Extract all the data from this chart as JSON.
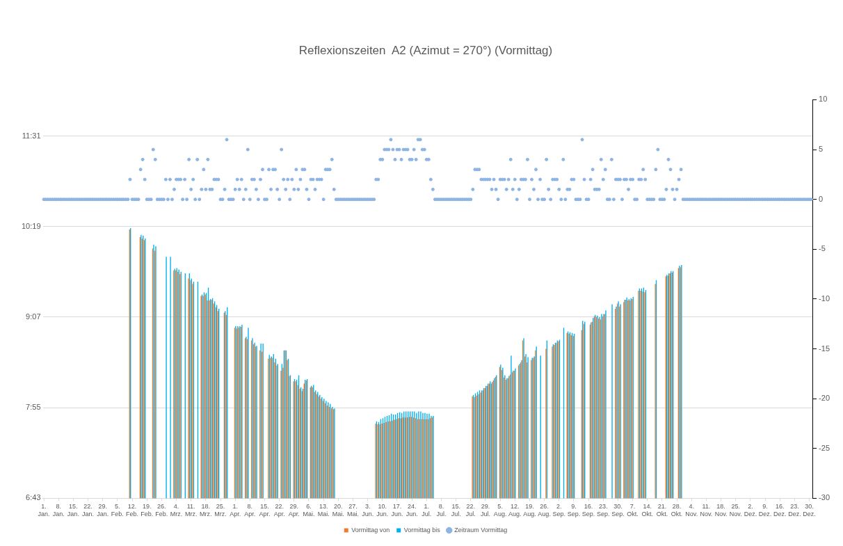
{
  "chart_data": {
    "type": "bar",
    "title": "Reflexionszeiten  A2 (Azimut = 270°) (Vormittag)",
    "categories": [
      "1. Jan.",
      null,
      null,
      null,
      null,
      null,
      null,
      "8. Jan.",
      null,
      null,
      null,
      null,
      null,
      null,
      "15. Jan.",
      null,
      null,
      null,
      null,
      null,
      null,
      "22. Jan.",
      null,
      null,
      null,
      null,
      null,
      null,
      "29. Jan.",
      null,
      null,
      null,
      null,
      null,
      null,
      "5. Feb.",
      null,
      null,
      null,
      null,
      null,
      null,
      "12. Feb.",
      null,
      null,
      null,
      null,
      null,
      null,
      "19. Feb.",
      null,
      null,
      null,
      null,
      null,
      null,
      "26. Feb.",
      null,
      null,
      null,
      null,
      null,
      null,
      "4. Mrz.",
      null,
      null,
      null,
      null,
      null,
      null,
      "11. Mrz.",
      null,
      null,
      null,
      null,
      null,
      null,
      "18. Mrz.",
      null,
      null,
      null,
      null,
      null,
      null,
      "25. Mrz.",
      null,
      null,
      null,
      null,
      null,
      null,
      "1. Apr.",
      null,
      null,
      null,
      null,
      null,
      null,
      "8. Apr.",
      null,
      null,
      null,
      null,
      null,
      null,
      "15. Apr.",
      null,
      null,
      null,
      null,
      null,
      null,
      "22. Apr.",
      null,
      null,
      null,
      null,
      null,
      null,
      "29. Apr.",
      null,
      null,
      null,
      null,
      null,
      null,
      "6. Mai.",
      null,
      null,
      null,
      null,
      null,
      null,
      "13. Mai.",
      null,
      null,
      null,
      null,
      null,
      null,
      "20. Mai.",
      null,
      null,
      null,
      null,
      null,
      null,
      "27. Mai.",
      null,
      null,
      null,
      null,
      null,
      null,
      "3. Jun.",
      null,
      null,
      null,
      null,
      null,
      null,
      "10. Jun.",
      null,
      null,
      null,
      null,
      null,
      null,
      "17. Jun.",
      null,
      null,
      null,
      null,
      null,
      null,
      "24. Jun.",
      null,
      null,
      null,
      null,
      null,
      null,
      "1. Jul.",
      null,
      null,
      null,
      null,
      null,
      null,
      "8. Jul.",
      null,
      null,
      null,
      null,
      null,
      null,
      "15. Jul.",
      null,
      null,
      null,
      null,
      null,
      null,
      "22. Jul.",
      null,
      null,
      null,
      null,
      null,
      null,
      "29. Jul.",
      null,
      null,
      null,
      null,
      null,
      null,
      "5. Aug.",
      null,
      null,
      null,
      null,
      null,
      null,
      "12. Aug.",
      null,
      null,
      null,
      null,
      null,
      null,
      "19. Aug.",
      null,
      null,
      null,
      null,
      null,
      null,
      "26. Aug.",
      null,
      null,
      null,
      null,
      null,
      null,
      "2. Sep.",
      null,
      null,
      null,
      null,
      null,
      null,
      "9. Sep.",
      null,
      null,
      null,
      null,
      null,
      null,
      "16. Sep.",
      null,
      null,
      null,
      null,
      null,
      null,
      "23. Sep.",
      null,
      null,
      null,
      null,
      null,
      null,
      "30. Sep.",
      null,
      null,
      null,
      null,
      null,
      null,
      "7. Okt.",
      null,
      null,
      null,
      null,
      null,
      null,
      "14. Okt.",
      null,
      null,
      null,
      null,
      null,
      null,
      "21. Okt.",
      null,
      null,
      null,
      null,
      null,
      null,
      "28. Okt.",
      null,
      null,
      null,
      null,
      null,
      null,
      "4. Nov.",
      null,
      null,
      null,
      null,
      null,
      null,
      "11. Nov.",
      null,
      null,
      null,
      null,
      null,
      null,
      "18. Nov.",
      null,
      null,
      null,
      null,
      null,
      null,
      "25. Nov.",
      null,
      null,
      null,
      null,
      null,
      null,
      "2. Dez.",
      null,
      null,
      null,
      null,
      null,
      null,
      "9. Dez.",
      null,
      null,
      null,
      null,
      null,
      null,
      "16. Dez.",
      null,
      null,
      null,
      null,
      null,
      null,
      "23. Dez.",
      null,
      null,
      null,
      null,
      null,
      null,
      "30. Dez.",
      null
    ],
    "ylim": [
      6.72,
      12
    ],
    "yticks": [
      {
        "value": 6.72,
        "label": "6:43"
      },
      {
        "value": 7.92,
        "label": "7:55"
      },
      {
        "value": 9.12,
        "label": "9:07"
      },
      {
        "value": 10.32,
        "label": "10:19"
      },
      {
        "value": 11.52,
        "label": "11:31"
      }
    ],
    "y2lim": [
      -30,
      10
    ],
    "y2ticks": [
      -30,
      -25,
      -20,
      -15,
      -10,
      -5,
      0,
      5,
      10
    ],
    "grid": "y",
    "legend": "bottom",
    "series": [
      {
        "name": "Vormittag von",
        "color": "#ed7d31",
        "values": [
          null,
          null,
          null,
          null,
          null,
          null,
          null,
          null,
          null,
          null,
          null,
          null,
          null,
          null,
          null,
          null,
          null,
          null,
          null,
          null,
          null,
          null,
          null,
          null,
          null,
          null,
          null,
          null,
          null,
          null,
          null,
          null,
          null,
          null,
          null,
          null,
          null,
          null,
          null,
          null,
          null,
          10.28,
          null,
          null,
          null,
          null,
          10.18,
          10.16,
          10.14,
          null,
          null,
          null,
          10.03,
          10.0,
          null,
          null,
          null,
          null,
          null,
          null,
          null,
          null,
          9.74,
          9.74,
          9.72,
          9.69,
          null,
          null,
          null,
          9.63,
          9.61,
          9.56,
          null,
          null,
          null,
          9.4,
          9.4,
          9.42,
          9.34,
          9.34,
          9.35,
          9.3,
          9.25,
          9.2,
          null,
          null,
          9.18,
          9.15,
          null,
          null,
          null,
          8.98,
          8.97,
          8.98,
          8.99,
          null,
          8.84,
          8.83,
          null,
          8.81,
          8.76,
          8.73,
          null,
          8.68,
          8.66,
          null,
          null,
          8.57,
          8.58,
          8.58,
          8.52,
          8.48,
          null,
          8.41,
          8.45,
          8.68,
          8.55,
          8.34,
          null,
          8.27,
          8.27,
          8.22,
          8.17,
          8.14,
          8.24,
          8.28,
          null,
          8.19,
          8.19,
          8.13,
          8.1,
          8.07,
          8.04,
          8.01,
          7.98,
          7.95,
          7.93,
          7.91,
          7.9,
          null,
          null,
          null,
          null,
          null,
          null,
          null,
          null,
          null,
          null,
          null,
          null,
          null,
          null,
          null,
          null,
          null,
          null,
          null,
          7.71,
          7.7,
          7.7,
          7.71,
          7.72,
          7.73,
          7.74,
          7.74,
          7.75,
          7.76,
          7.77,
          7.78,
          7.78,
          7.79,
          7.79,
          7.79,
          7.8,
          7.8,
          7.79,
          7.78,
          7.77,
          7.77,
          7.77,
          7.77,
          7.77,
          7.77,
          7.78,
          7.79,
          null,
          null,
          null,
          null,
          null,
          null,
          null,
          null,
          null,
          null,
          null,
          null,
          null,
          null,
          null,
          null,
          null,
          null,
          8.07,
          8.06,
          8.08,
          8.1,
          8.12,
          8.15,
          8.18,
          8.21,
          8.24,
          8.24,
          8.28,
          8.33,
          null,
          8.46,
          8.42,
          8.32,
          8.29,
          8.31,
          8.36,
          8.39,
          8.41,
          null,
          8.48,
          8.52,
          8.81,
          8.6,
          8.52,
          null,
          8.55,
          8.58,
          8.68,
          null,
          null,
          null,
          null,
          8.7,
          null,
          null,
          8.73,
          8.75,
          8.78,
          8.8,
          null,
          null,
          null,
          8.91,
          8.9,
          8.88,
          8.87,
          null,
          null,
          null,
          8.95,
          9.03,
          null,
          null,
          9.02,
          9.06,
          9.13,
          9.12,
          9.1,
          9.09,
          9.13,
          9.16,
          null,
          null,
          null,
          null,
          9.23,
          9.3,
          9.26,
          null,
          9.32,
          9.35,
          9.34,
          9.34,
          9.36,
          null,
          null,
          9.47,
          9.47,
          9.46,
          9.45,
          null,
          null,
          null,
          null,
          9.56,
          null,
          null,
          null,
          null,
          9.66,
          9.67,
          9.7,
          9.71,
          null,
          null,
          9.77,
          9.78,
          null,
          null,
          null,
          null,
          null,
          null,
          null,
          null,
          null,
          null,
          null,
          null,
          null,
          null,
          null,
          null,
          null,
          null,
          null,
          null,
          null,
          null,
          null,
          null,
          null,
          null,
          null,
          null,
          null,
          null,
          null,
          null,
          null,
          null,
          null,
          null,
          null,
          null,
          null,
          null,
          null,
          null,
          null,
          null,
          null,
          null,
          null,
          null,
          null,
          null,
          null,
          null,
          null,
          null,
          null,
          null,
          null,
          null,
          null,
          null,
          null,
          null
        ]
      },
      {
        "name": "Vormittag bis",
        "color": "#00b0f0",
        "values": [
          null,
          null,
          null,
          null,
          null,
          null,
          null,
          null,
          null,
          null,
          null,
          null,
          null,
          null,
          null,
          null,
          null,
          null,
          null,
          null,
          null,
          null,
          null,
          null,
          null,
          null,
          null,
          null,
          null,
          null,
          null,
          null,
          null,
          null,
          null,
          null,
          null,
          null,
          null,
          null,
          null,
          10.3,
          null,
          null,
          null,
          null,
          10.21,
          10.2,
          10.16,
          null,
          null,
          null,
          10.08,
          10.06,
          null,
          null,
          null,
          null,
          9.92,
          null,
          9.92,
          null,
          9.76,
          9.77,
          9.75,
          9.72,
          null,
          9.7,
          null,
          9.7,
          9.63,
          9.59,
          null,
          9.59,
          null,
          9.42,
          9.45,
          9.44,
          9.51,
          9.36,
          9.37,
          9.33,
          9.28,
          9.23,
          null,
          null,
          9.2,
          9.25,
          null,
          null,
          null,
          9.0,
          9.0,
          9.0,
          9.02,
          null,
          8.86,
          8.98,
          null,
          8.84,
          8.78,
          8.74,
          null,
          8.77,
          8.77,
          null,
          null,
          8.62,
          8.6,
          8.63,
          8.57,
          8.5,
          null,
          8.5,
          8.68,
          8.68,
          8.57,
          8.35,
          null,
          8.3,
          8.29,
          8.35,
          8.19,
          8.17,
          8.29,
          8.3,
          null,
          8.21,
          8.22,
          8.15,
          8.13,
          8.09,
          8.06,
          8.04,
          8.01,
          7.99,
          7.97,
          7.93,
          7.91,
          null,
          null,
          null,
          null,
          null,
          null,
          null,
          null,
          null,
          null,
          null,
          null,
          null,
          null,
          null,
          null,
          null,
          null,
          null,
          7.74,
          7.73,
          7.77,
          7.78,
          7.8,
          7.81,
          7.82,
          7.84,
          7.83,
          7.83,
          7.85,
          7.86,
          7.85,
          7.87,
          7.87,
          7.87,
          7.87,
          7.87,
          7.87,
          7.85,
          7.87,
          7.87,
          7.85,
          7.85,
          7.84,
          7.84,
          7.81,
          7.81,
          null,
          null,
          null,
          null,
          null,
          null,
          null,
          null,
          null,
          null,
          null,
          null,
          null,
          null,
          null,
          null,
          null,
          null,
          8.09,
          8.11,
          8.13,
          8.15,
          8.15,
          8.18,
          8.21,
          8.24,
          8.27,
          8.26,
          8.31,
          8.35,
          null,
          8.49,
          8.45,
          8.35,
          8.31,
          8.34,
          8.61,
          8.41,
          8.44,
          null,
          8.5,
          8.55,
          8.84,
          8.63,
          8.59,
          null,
          8.58,
          8.6,
          8.73,
          null,
          8.61,
          null,
          null,
          8.81,
          null,
          null,
          8.76,
          8.78,
          8.81,
          8.82,
          null,
          8.98,
          null,
          8.93,
          8.92,
          8.91,
          8.9,
          null,
          null,
          null,
          9.07,
          9.06,
          null,
          null,
          9.05,
          9.11,
          9.15,
          9.14,
          9.12,
          9.16,
          9.16,
          9.21,
          null,
          null,
          9.29,
          null,
          9.26,
          9.33,
          9.29,
          null,
          9.35,
          9.38,
          9.36,
          9.37,
          9.39,
          null,
          null,
          9.5,
          9.5,
          9.51,
          9.48,
          null,
          null,
          null,
          null,
          9.61,
          null,
          null,
          null,
          null,
          9.68,
          9.7,
          9.73,
          9.73,
          null,
          null,
          9.8,
          9.81,
          null,
          null,
          null,
          null,
          null,
          null,
          null,
          null,
          null,
          null,
          null,
          null,
          null,
          null,
          null,
          null,
          null,
          null,
          null,
          null,
          null,
          null,
          null,
          null,
          null,
          null,
          null,
          null,
          null,
          null,
          null,
          null,
          null,
          null,
          null,
          null,
          null,
          null,
          null,
          null,
          null,
          null,
          null,
          null,
          null,
          null,
          null,
          null,
          null,
          null,
          null,
          null,
          null,
          null,
          null,
          null,
          null,
          null,
          null,
          null,
          null,
          null
        ]
      },
      {
        "name": "Zeitraum Vormittag",
        "type": "scatter",
        "axis": "y2",
        "marker": "circle",
        "color": "#8eb4e3",
        "values": [
          0,
          0,
          0,
          0,
          0,
          0,
          0,
          0,
          0,
          0,
          0,
          0,
          0,
          0,
          0,
          0,
          0,
          0,
          0,
          0,
          0,
          0,
          0,
          0,
          0,
          0,
          0,
          0,
          0,
          0,
          0,
          0,
          0,
          0,
          0,
          0,
          0,
          0,
          0,
          0,
          0,
          2,
          0,
          0,
          0,
          0,
          3,
          4,
          2,
          0,
          0,
          0,
          5,
          4,
          0,
          0,
          0,
          0,
          2,
          0,
          2,
          0,
          1,
          2,
          2,
          2,
          0,
          2,
          0,
          4,
          1,
          2,
          0,
          4,
          0,
          1,
          3,
          1,
          4,
          1,
          1,
          2,
          2,
          2,
          0,
          0,
          1,
          6,
          0,
          0,
          0,
          1,
          2,
          1,
          2,
          0,
          1,
          5,
          0,
          2,
          2,
          1,
          0,
          2,
          3,
          0,
          0,
          3,
          1,
          3,
          3,
          1,
          0,
          5,
          2,
          1,
          2,
          0,
          2,
          1,
          3,
          1,
          2,
          3,
          3,
          1,
          0,
          2,
          2,
          1,
          2,
          2,
          2,
          0,
          3,
          3,
          3,
          4,
          1,
          0,
          0,
          0,
          0,
          0,
          0,
          0,
          0,
          0,
          0,
          0,
          0,
          0,
          0,
          0,
          0,
          0,
          0,
          0,
          2,
          2,
          4,
          4,
          5,
          5,
          5,
          6,
          5,
          4,
          5,
          5,
          4,
          5,
          5,
          5,
          4,
          4,
          5,
          4,
          6,
          6,
          5,
          5,
          4,
          4,
          2,
          1,
          0,
          0,
          0,
          0,
          0,
          0,
          0,
          0,
          0,
          0,
          0,
          0,
          0,
          0,
          0,
          0,
          0,
          0,
          1,
          3,
          3,
          3,
          2,
          2,
          2,
          2,
          2,
          1,
          2,
          1,
          0,
          2,
          2,
          2,
          1,
          2,
          4,
          1,
          2,
          0,
          1,
          2,
          2,
          2,
          4,
          0,
          2,
          1,
          3,
          0,
          2,
          0,
          0,
          4,
          1,
          0,
          2,
          2,
          2,
          1,
          0,
          4,
          0,
          1,
          1,
          2,
          2,
          0,
          0,
          0,
          6,
          2,
          0,
          0,
          2,
          3,
          1,
          1,
          1,
          4,
          2,
          3,
          0,
          0,
          4,
          0,
          2,
          2,
          2,
          0,
          2,
          2,
          1,
          2,
          2,
          0,
          0,
          2,
          2,
          3,
          2,
          0,
          0,
          0,
          0,
          3,
          5,
          0,
          0,
          0,
          1,
          4,
          3,
          1,
          0,
          1,
          2,
          3,
          0,
          0,
          0,
          0,
          0,
          0,
          0,
          0,
          0,
          0,
          0,
          0,
          0,
          0,
          0,
          0,
          0,
          0,
          0,
          0,
          0,
          0,
          0,
          0,
          0,
          0,
          0,
          0,
          0,
          0,
          0,
          0,
          0,
          0,
          0,
          0,
          0,
          0,
          0,
          0,
          0,
          0,
          0,
          0,
          0,
          0,
          0,
          0,
          0,
          0,
          0,
          0,
          0,
          0,
          0,
          0,
          0,
          0,
          0,
          0,
          0,
          0
        ]
      }
    ]
  }
}
